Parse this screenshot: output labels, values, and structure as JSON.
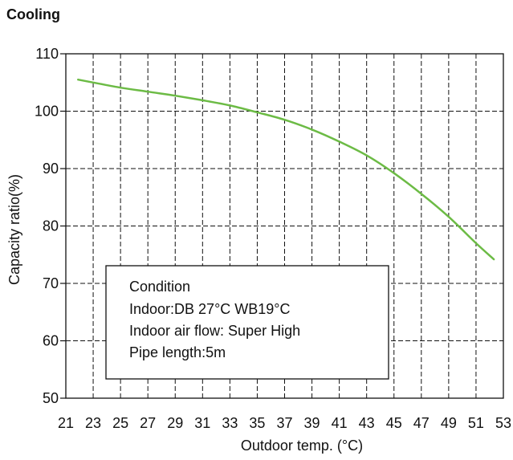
{
  "chart_data": {
    "type": "line",
    "title": "Cooling",
    "xlabel": "Outdoor temp. (°C)",
    "ylabel": "Capacity ratio(%)",
    "xlim": [
      21,
      53
    ],
    "ylim": [
      50,
      110
    ],
    "x_ticks": [
      21,
      23,
      25,
      27,
      29,
      31,
      33,
      35,
      37,
      39,
      41,
      43,
      45,
      47,
      49,
      51,
      53
    ],
    "y_ticks": [
      50,
      60,
      70,
      80,
      90,
      100,
      110
    ],
    "grid": "dashed",
    "line_color": "#6cbb45",
    "series": [
      {
        "x": [
          21.9,
          23,
          25,
          27,
          29,
          31,
          33,
          35,
          37,
          39,
          41,
          43,
          45,
          47,
          49,
          51,
          52.3
        ],
        "values": [
          105.5,
          105,
          104.1,
          103.4,
          102.7,
          101.9,
          101.0,
          99.8,
          98.5,
          96.8,
          94.7,
          92.3,
          89.2,
          85.6,
          81.6,
          77.0,
          74.2
        ]
      }
    ],
    "annotation": {
      "lines": [
        "Condition",
        "Indoor:DB 27°C  WB19°C",
        "Indoor air flow: Super High",
        "Pipe length:5m"
      ]
    }
  }
}
